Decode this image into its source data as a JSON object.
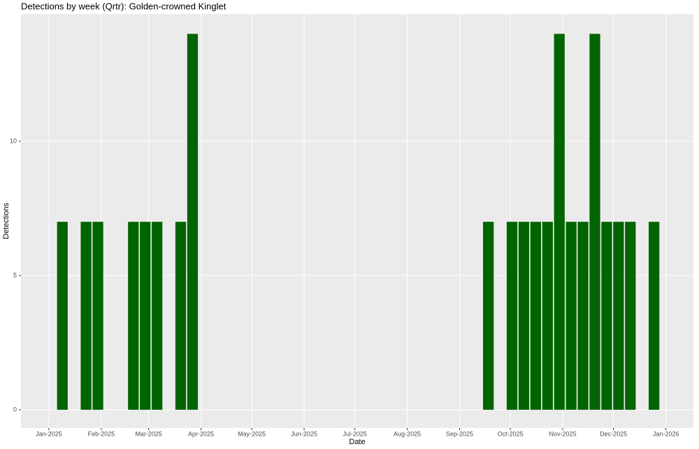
{
  "chart_data": {
    "type": "bar",
    "title": "Detections by week (Qrtr): Golden-crowned Kinglet",
    "xlabel": "Date",
    "ylabel": "Detections",
    "x": [
      8,
      22,
      29,
      50,
      57,
      64,
      78,
      85,
      260,
      274,
      281,
      288,
      295,
      302,
      309,
      316,
      323,
      330,
      337,
      344,
      358
    ],
    "values": [
      7,
      7,
      7,
      7,
      7,
      7,
      7,
      14,
      7,
      7,
      7,
      7,
      7,
      14,
      7,
      7,
      14,
      7,
      7,
      7,
      7
    ],
    "color": "#006400",
    "xlim": [
      -16.5,
      381.3
    ],
    "xticks": [
      {
        "value": 0,
        "label": "Jan-2025"
      },
      {
        "value": 31,
        "label": "Feb-2025"
      },
      {
        "value": 59,
        "label": "Mar-2025"
      },
      {
        "value": 90,
        "label": "Apr-2025"
      },
      {
        "value": 120,
        "label": "May-2025"
      },
      {
        "value": 151,
        "label": "Jun-2025"
      },
      {
        "value": 181,
        "label": "Jul-2025"
      },
      {
        "value": 212,
        "label": "Aug-2025"
      },
      {
        "value": 243,
        "label": "Sep-2025"
      },
      {
        "value": 273,
        "label": "Oct-2025"
      },
      {
        "value": 304,
        "label": "Nov-2025"
      },
      {
        "value": 334,
        "label": "Dec-2025"
      },
      {
        "value": 365,
        "label": "Jan-2026"
      }
    ],
    "ylim": [
      -0.68,
      14.74
    ],
    "yticks": [
      0,
      5,
      10
    ],
    "grid": true
  }
}
